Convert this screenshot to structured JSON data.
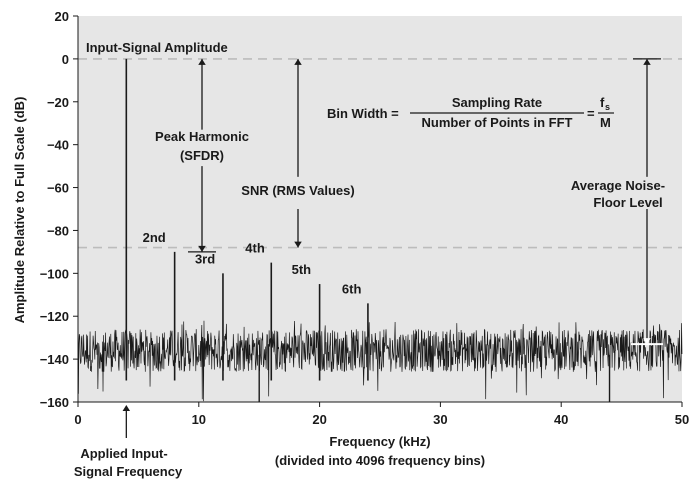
{
  "chart_data": {
    "type": "line",
    "title": "",
    "xlabel": "Frequency (kHz)",
    "xlabel_sub": "(divided into 4096 frequency bins)",
    "ylabel": "Amplitude Relative to Full Scale (dB)",
    "xlim": [
      0,
      50
    ],
    "ylim": [
      -160,
      20
    ],
    "x_ticks": [
      0,
      10,
      20,
      30,
      40,
      50
    ],
    "y_ticks": [
      20,
      0,
      -20,
      -40,
      -60,
      -80,
      -100,
      -120,
      -140,
      -160
    ],
    "y_tick_labels": [
      "20",
      "0",
      "−20",
      "−40",
      "−60",
      "−80",
      "−100",
      "−120",
      "−140",
      "−160"
    ],
    "grid": false,
    "reference_lines": [
      {
        "y": 0,
        "style": "dashed"
      },
      {
        "y": -88,
        "style": "dashed"
      }
    ],
    "noise_floor": {
      "mean_db": -136,
      "band_db": [
        -145,
        -125
      ],
      "min_spike_db": -160
    },
    "spikes": [
      {
        "x": 4,
        "y": 0,
        "label": "Input-Signal Amplitude"
      },
      {
        "x": 8,
        "y": -90,
        "label": "2nd"
      },
      {
        "x": 12,
        "y": -100,
        "label": "3rd"
      },
      {
        "x": 16,
        "y": -95,
        "label": "4th"
      },
      {
        "x": 20,
        "y": -105,
        "label": "5th"
      },
      {
        "x": 24,
        "y": -114,
        "label": "6th"
      }
    ],
    "annotations": {
      "input_amplitude": "Input-Signal Amplitude",
      "peak_harmonic_1": "Peak Harmonic",
      "peak_harmonic_2": "(SFDR)",
      "snr": "SNR (RMS Values)",
      "bin_width_lhs": "Bin Width =",
      "bin_width_num": "Sampling Rate",
      "bin_width_den": "Number of Points in FFT",
      "bin_width_eq": "=",
      "bin_width_fs": "f",
      "bin_width_fs_sub": "s",
      "bin_width_m": "M",
      "noise_floor_1": "Average Noise-",
      "noise_floor_2": "Floor Level",
      "applied_1": "Applied Input-",
      "applied_2": "Signal Frequency"
    },
    "colors": {
      "background": "#e6e6e6",
      "trace": "#1a1a1a",
      "dashed_line": "#bcbcbc",
      "white_marker": "#ffffff"
    }
  }
}
